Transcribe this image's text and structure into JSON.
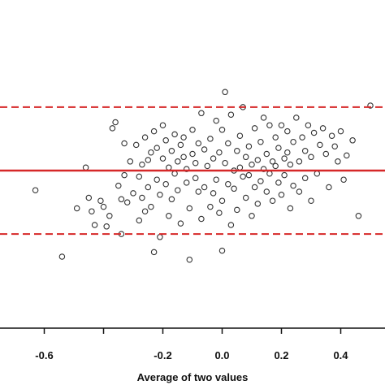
{
  "chart_data": {
    "type": "scatter",
    "title": "",
    "xlabel": "Average of two values",
    "ylabel": "",
    "xlim": [
      -0.76,
      0.55
    ],
    "ylim": [
      -1.0,
      1.0
    ],
    "x_ticks": [
      -0.6,
      -0.4,
      -0.2,
      0.0,
      0.2,
      0.4
    ],
    "x_tick_labels": [
      "-0.6",
      "",
      "-0.2",
      "0.0",
      "0.2",
      "0.4"
    ],
    "grid": false,
    "legend": "none",
    "reference_lines": [
      {
        "name": "mean",
        "y": 0.0,
        "style": "solid",
        "color": "#d62728"
      },
      {
        "name": "upper-limit",
        "y": 0.42,
        "style": "dashed",
        "color": "#d62728"
      },
      {
        "name": "lower-limit",
        "y": -0.42,
        "style": "dashed",
        "color": "#d62728"
      }
    ],
    "series": [
      {
        "marker": "open-circle",
        "color": "#333333",
        "points": [
          [
            -0.63,
            -0.13
          ],
          [
            -0.54,
            -0.57
          ],
          [
            -0.49,
            -0.25
          ],
          [
            -0.46,
            0.02
          ],
          [
            -0.45,
            -0.18
          ],
          [
            -0.44,
            -0.27
          ],
          [
            -0.43,
            -0.36
          ],
          [
            -0.41,
            -0.2
          ],
          [
            -0.4,
            -0.24
          ],
          [
            -0.39,
            -0.37
          ],
          [
            -0.38,
            -0.3
          ],
          [
            -0.37,
            0.28
          ],
          [
            -0.36,
            0.32
          ],
          [
            -0.35,
            -0.1
          ],
          [
            -0.34,
            -0.19
          ],
          [
            -0.34,
            -0.42
          ],
          [
            -0.33,
            0.18
          ],
          [
            -0.33,
            -0.03
          ],
          [
            -0.32,
            -0.21
          ],
          [
            -0.31,
            0.06
          ],
          [
            -0.3,
            -0.15
          ],
          [
            -0.29,
            0.17
          ],
          [
            -0.28,
            -0.04
          ],
          [
            -0.28,
            -0.33
          ],
          [
            -0.27,
            0.04
          ],
          [
            -0.27,
            -0.18
          ],
          [
            -0.26,
            0.22
          ],
          [
            -0.26,
            -0.27
          ],
          [
            -0.25,
            0.07
          ],
          [
            -0.25,
            -0.11
          ],
          [
            -0.24,
            0.12
          ],
          [
            -0.24,
            -0.24
          ],
          [
            -0.23,
            -0.54
          ],
          [
            -0.23,
            0.26
          ],
          [
            -0.22,
            -0.06
          ],
          [
            -0.22,
            0.15
          ],
          [
            -0.21,
            -0.16
          ],
          [
            -0.21,
            -0.44
          ],
          [
            -0.2,
            0.08
          ],
          [
            -0.2,
            0.3
          ],
          [
            -0.19,
            -0.09
          ],
          [
            -0.19,
            0.2
          ],
          [
            -0.18,
            -0.3
          ],
          [
            -0.18,
            0.02
          ],
          [
            -0.17,
            0.13
          ],
          [
            -0.17,
            -0.19
          ],
          [
            -0.16,
            0.24
          ],
          [
            -0.16,
            -0.02
          ],
          [
            -0.15,
            0.06
          ],
          [
            -0.15,
            -0.13
          ],
          [
            -0.14,
            0.17
          ],
          [
            -0.14,
            -0.35
          ],
          [
            -0.13,
            0.09
          ],
          [
            -0.13,
            0.22
          ],
          [
            -0.12,
            -0.08
          ],
          [
            -0.12,
            0.01
          ],
          [
            -0.11,
            -0.25
          ],
          [
            -0.11,
            -0.59
          ],
          [
            -0.1,
            0.27
          ],
          [
            -0.1,
            0.11
          ],
          [
            -0.09,
            -0.05
          ],
          [
            -0.09,
            0.05
          ],
          [
            -0.08,
            0.18
          ],
          [
            -0.08,
            -0.14
          ],
          [
            -0.07,
            0.38
          ],
          [
            -0.07,
            -0.32
          ],
          [
            -0.06,
            -0.11
          ],
          [
            -0.06,
            0.14
          ],
          [
            -0.05,
            0.03
          ],
          [
            -0.04,
            -0.24
          ],
          [
            -0.04,
            0.21
          ],
          [
            -0.03,
            -0.15
          ],
          [
            -0.03,
            0.08
          ],
          [
            -0.02,
            0.33
          ],
          [
            -0.02,
            -0.06
          ],
          [
            -0.01,
            -0.28
          ],
          [
            -0.01,
            0.12
          ],
          [
            0.0,
            -0.53
          ],
          [
            0.0,
            0.27
          ],
          [
            0.0,
            -0.2
          ],
          [
            0.01,
            0.52
          ],
          [
            0.01,
            0.05
          ],
          [
            0.02,
            -0.09
          ],
          [
            0.02,
            0.18
          ],
          [
            0.03,
            -0.36
          ],
          [
            0.03,
            0.37
          ],
          [
            0.04,
            0.0
          ],
          [
            0.04,
            -0.12
          ],
          [
            0.05,
            0.13
          ],
          [
            0.05,
            -0.26
          ],
          [
            0.06,
            0.02
          ],
          [
            0.06,
            0.23
          ],
          [
            0.07,
            -0.04
          ],
          [
            0.07,
            0.42
          ],
          [
            0.08,
            -0.18
          ],
          [
            0.08,
            0.09
          ],
          [
            0.09,
            -0.03
          ],
          [
            0.09,
            0.16
          ],
          [
            0.1,
            -0.3
          ],
          [
            0.1,
            0.04
          ],
          [
            0.11,
            0.28
          ],
          [
            0.11,
            -0.11
          ],
          [
            0.12,
            0.07
          ],
          [
            0.12,
            -0.22
          ],
          [
            0.13,
            0.19
          ],
          [
            0.13,
            -0.07
          ],
          [
            0.14,
            0.35
          ],
          [
            0.14,
            0.01
          ],
          [
            0.15,
            -0.14
          ],
          [
            0.15,
            0.11
          ],
          [
            0.16,
            0.3
          ],
          [
            0.16,
            -0.02
          ],
          [
            0.17,
            0.06
          ],
          [
            0.17,
            -0.2
          ],
          [
            0.18,
            0.22
          ],
          [
            0.18,
            0.03
          ],
          [
            0.19,
            -0.08
          ],
          [
            0.19,
            0.15
          ],
          [
            0.2,
            0.3
          ],
          [
            0.2,
            -0.16
          ],
          [
            0.21,
            0.08
          ],
          [
            0.21,
            -0.03
          ],
          [
            0.22,
            0.26
          ],
          [
            0.22,
            0.12
          ],
          [
            0.23,
            -0.25
          ],
          [
            0.23,
            0.04
          ],
          [
            0.24,
            0.19
          ],
          [
            0.24,
            -0.1
          ],
          [
            0.25,
            0.35
          ],
          [
            0.26,
            0.06
          ],
          [
            0.26,
            -0.14
          ],
          [
            0.27,
            0.22
          ],
          [
            0.28,
            -0.05
          ],
          [
            0.28,
            0.13
          ],
          [
            0.29,
            0.3
          ],
          [
            0.3,
            -0.2
          ],
          [
            0.3,
            0.09
          ],
          [
            0.31,
            0.25
          ],
          [
            0.32,
            -0.02
          ],
          [
            0.33,
            0.17
          ],
          [
            0.34,
            0.28
          ],
          [
            0.35,
            0.11
          ],
          [
            0.36,
            -0.11
          ],
          [
            0.37,
            0.23
          ],
          [
            0.38,
            0.16
          ],
          [
            0.39,
            0.06
          ],
          [
            0.4,
            0.26
          ],
          [
            0.41,
            -0.06
          ],
          [
            0.42,
            0.1
          ],
          [
            0.44,
            0.2
          ],
          [
            0.46,
            -0.3
          ],
          [
            0.5,
            0.43
          ]
        ]
      }
    ]
  }
}
